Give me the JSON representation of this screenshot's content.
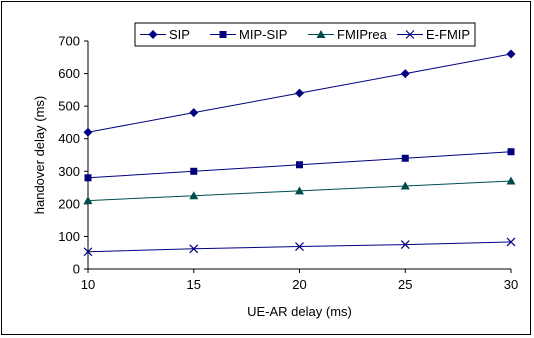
{
  "chart_data": {
    "type": "line",
    "x": [
      10,
      15,
      20,
      25,
      30
    ],
    "xlabel": "UE-AR delay (ms)",
    "ylabel": "handover delay (ms)",
    "xlim": [
      10,
      30
    ],
    "ylim": [
      0,
      700
    ],
    "x_ticks": [
      "10",
      "15",
      "20",
      "25",
      "30"
    ],
    "y_ticks": [
      "0",
      "100",
      "200",
      "300",
      "400",
      "500",
      "600",
      "700"
    ],
    "grid": false,
    "legend_position": "top",
    "series": [
      {
        "name": "SIP",
        "marker": "diamond",
        "color": "#000080",
        "values": [
          420,
          480,
          540,
          600,
          660
        ]
      },
      {
        "name": "MIP-SIP",
        "marker": "square",
        "color": "#000080",
        "values": [
          280,
          300,
          320,
          340,
          360
        ]
      },
      {
        "name": "FMIPrea",
        "marker": "triangle",
        "color": "#004d4d",
        "values": [
          210,
          225,
          240,
          255,
          270
        ]
      },
      {
        "name": "E-FMIP",
        "marker": "x",
        "color": "#000080",
        "values": [
          53,
          62,
          69,
          75,
          83
        ]
      }
    ]
  }
}
